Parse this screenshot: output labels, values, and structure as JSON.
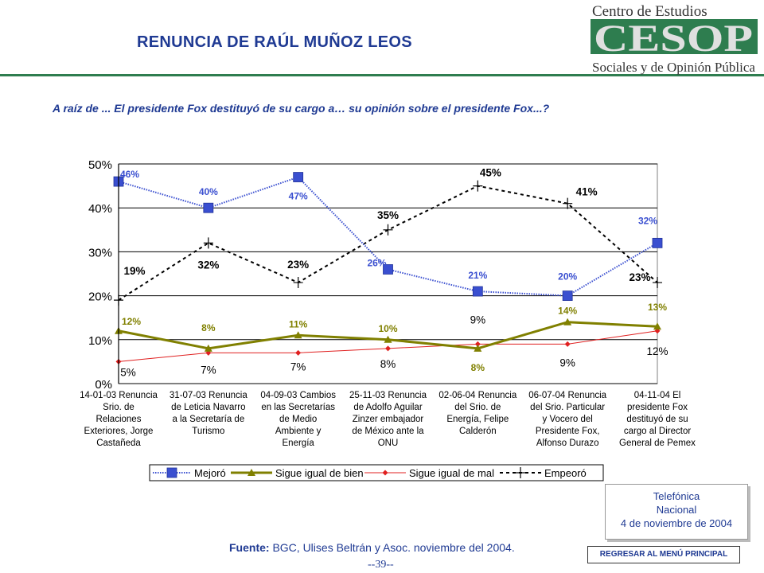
{
  "header": {
    "title": "RENUNCIA DE RAÚL MUÑOZ LEOS",
    "logo_top": "Centro de Estudios",
    "logo_mark": "CESOP",
    "logo_bottom": "Sociales y de Opinión Pública"
  },
  "question": "A raíz de ... El presidente Fox destituyó de su cargo a… su opinión sobre el presidente Fox...?",
  "chart_data": {
    "type": "line",
    "categories": [
      [
        "14-01-03 Renuncia",
        "Srio. de",
        "Relaciones",
        "Exteriores, Jorge",
        "Castañeda"
      ],
      [
        "31-07-03 Renuncia",
        "de Leticia Navarro",
        "a la Secretaría de",
        "Turismo"
      ],
      [
        "04-09-03 Cambios",
        "en las Secretarías",
        "de Medio",
        "Ambiente y",
        "Energía"
      ],
      [
        "25-11-03 Renuncia",
        "de Adolfo Aguilar",
        "Zinzer embajador",
        "de México ante la",
        "ONU"
      ],
      [
        "02-06-04 Renuncia",
        "del Srio. de",
        "Energía, Felipe",
        "Calderón"
      ],
      [
        "06-07-04 Renuncia",
        "del Srio. Particular",
        "y Vocero del",
        "Presidente Fox,",
        "Alfonso Durazo"
      ],
      [
        "04-11-04 El",
        "presidente Fox",
        "destituyó de su",
        "cargo al Director",
        "General de Pemex"
      ]
    ],
    "ylim": [
      0,
      50
    ],
    "yticks": [
      "0%",
      "10%",
      "20%",
      "30%",
      "40%",
      "50%"
    ],
    "series": [
      {
        "name": "Mejoró",
        "color": "#3a4fd0",
        "style": "dotted-square",
        "values": [
          46,
          40,
          47,
          26,
          21,
          20,
          32
        ],
        "labels": [
          "46%",
          "40%",
          "47%",
          "26%",
          "21%",
          "20%",
          "32%"
        ]
      },
      {
        "name": "Sigue igual de bien",
        "color": "#808000",
        "style": "solid-triangle",
        "values": [
          12,
          8,
          11,
          10,
          8,
          14,
          13
        ],
        "labels": [
          "12%",
          "8%",
          "11%",
          "10%",
          "8%",
          "14%",
          "13%"
        ]
      },
      {
        "name": "Sigue igual de mal",
        "color": "#e02020",
        "style": "solid-diamond",
        "values": [
          5,
          7,
          7,
          8,
          9,
          9,
          12
        ],
        "labels": [
          "5%",
          "7%",
          "7%",
          "8%",
          "9%",
          "9%",
          "12%"
        ]
      },
      {
        "name": "Empeoró",
        "color": "#000000",
        "style": "dashed-plus",
        "values": [
          19,
          32,
          23,
          35,
          45,
          41,
          23
        ],
        "labels": [
          "19%",
          "32%",
          "23%",
          "35%",
          "45%",
          "41%",
          "23%"
        ]
      }
    ],
    "grid": true,
    "legend": "bottom"
  },
  "phone_box": {
    "line1": "Telefónica",
    "line2": "Nacional",
    "line3": "4 de noviembre de 2004"
  },
  "source": {
    "label": "Fuente:",
    "text": "BGC, Ulises Beltrán y Asoc. noviembre del 2004."
  },
  "page_number": "--39--",
  "menu_button": "REGRESAR AL MENÚ PRINCIPAL"
}
